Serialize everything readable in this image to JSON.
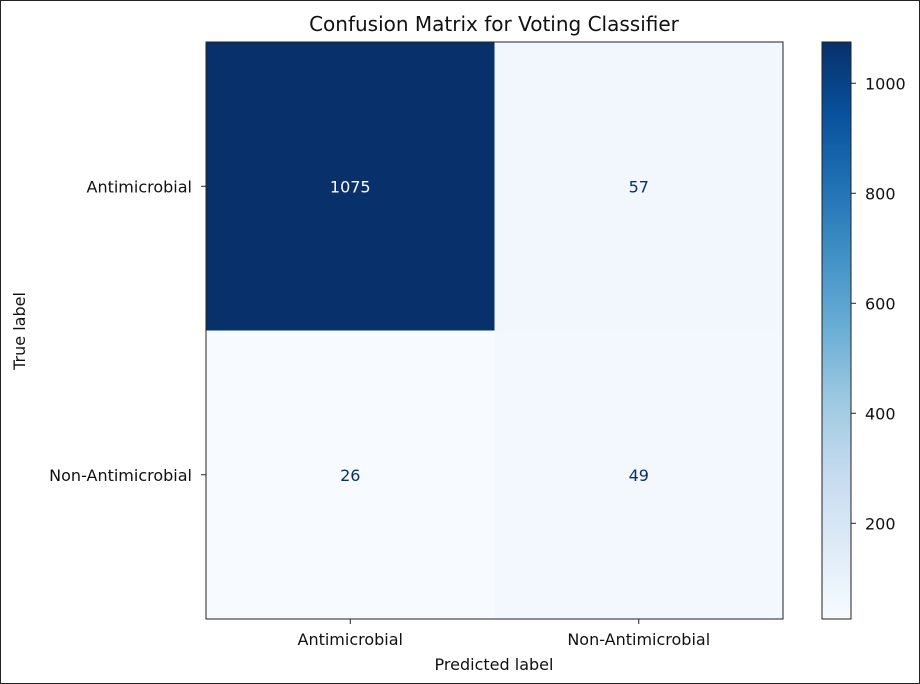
{
  "chart_data": {
    "type": "heatmap",
    "title": "Confusion Matrix for Voting Classifier",
    "xlabel": "Predicted label",
    "ylabel": "True label",
    "x_categories": [
      "Antimicrobial",
      "Non-Antimicrobial"
    ],
    "y_categories": [
      "Antimicrobial",
      "Non-Antimicrobial"
    ],
    "values": [
      [
        1075,
        57
      ],
      [
        26,
        49
      ]
    ],
    "colormap": "Blues",
    "colorbar": {
      "min": 26,
      "max": 1075,
      "ticks": [
        200,
        400,
        600,
        800,
        1000
      ]
    }
  }
}
